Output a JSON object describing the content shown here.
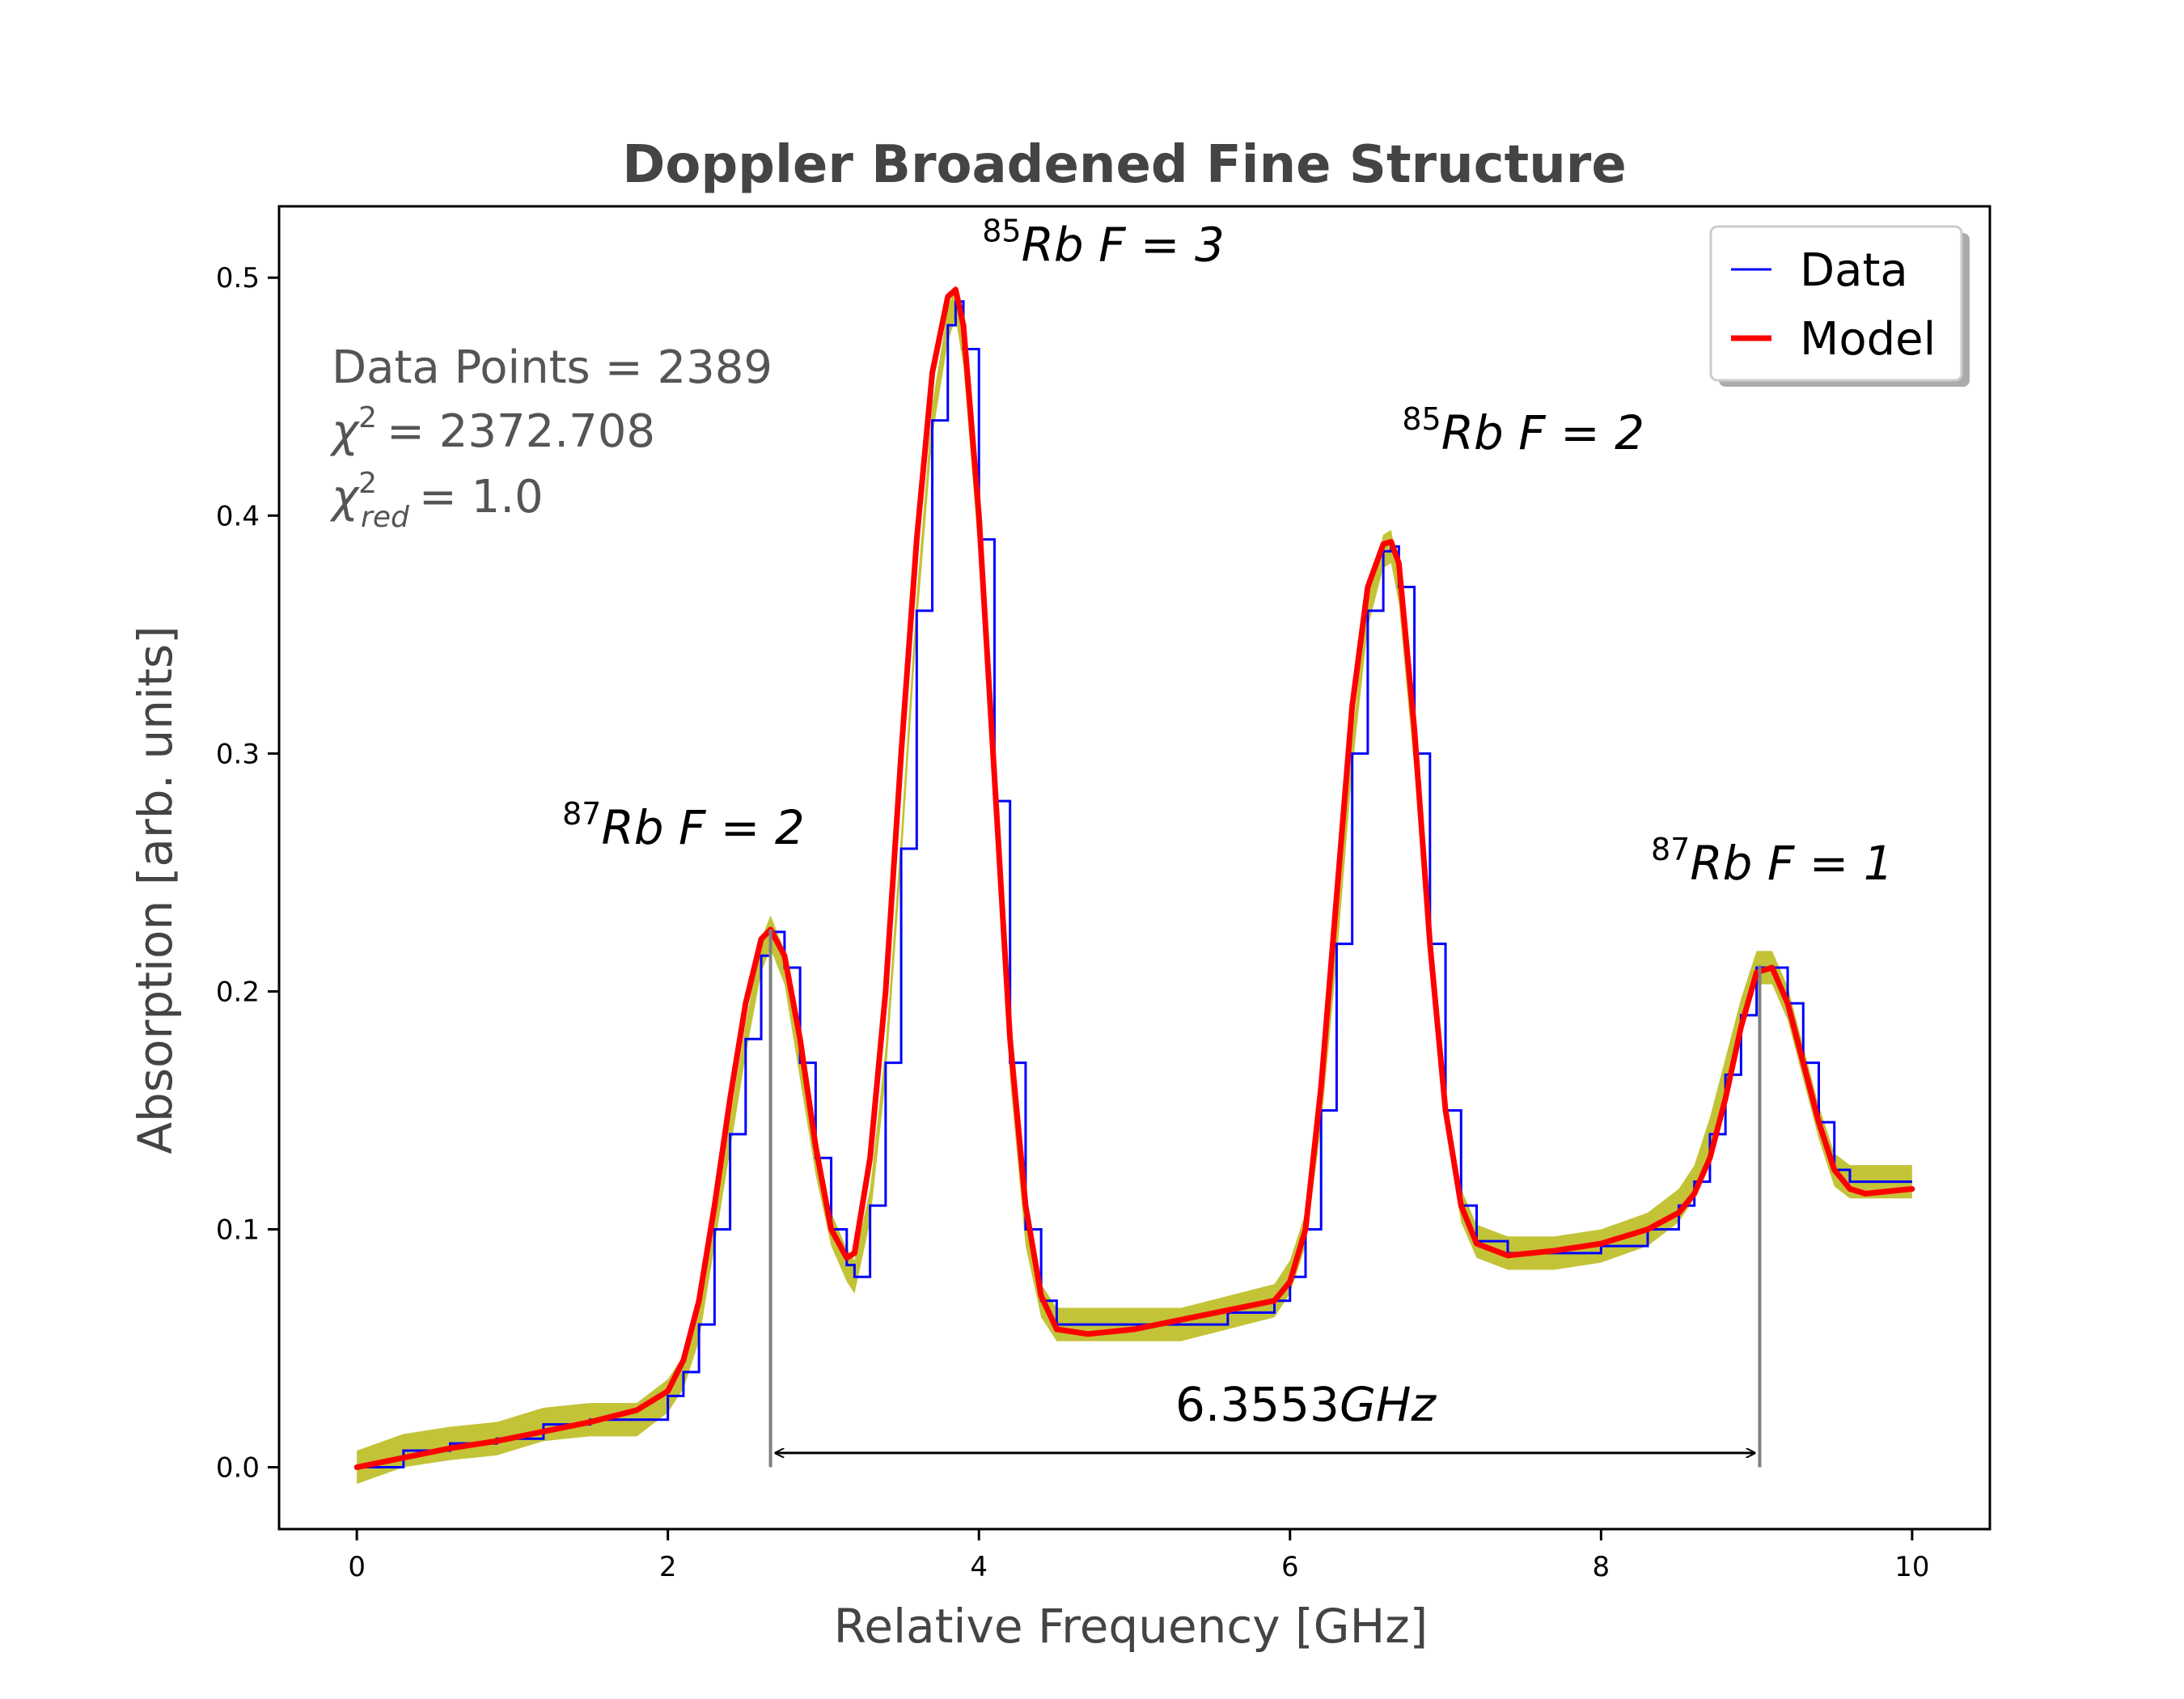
{
  "chart_data": {
    "type": "line",
    "title": "Doppler Broadened Fine Structure",
    "xlabel": "Relative Frequency [GHz]",
    "ylabel": "Absorption [arb. units]",
    "xlim": [
      -0.5,
      10.5
    ],
    "ylim": [
      -0.026,
      0.53
    ],
    "xticks": [
      0,
      2,
      4,
      6,
      8,
      10
    ],
    "xtick_labels": [
      "0",
      "2",
      "4",
      "6",
      "8",
      "10"
    ],
    "yticks": [
      0.0,
      0.1,
      0.2,
      0.3,
      0.4,
      0.5
    ],
    "ytick_labels": [
      "0.0",
      "0.1",
      "0.2",
      "0.3",
      "0.4",
      "0.5"
    ],
    "grid": false,
    "legend": {
      "placement": "top-right",
      "entries": [
        {
          "label": "Data",
          "color": "#0000ff"
        },
        {
          "label": "Model",
          "color": "#ff0000"
        }
      ]
    },
    "stats": {
      "points_label": "Data Points",
      "points_value": "= 2389",
      "chi2_value": "= 2372.708",
      "chi2red_sub": "red",
      "chi2red_value": "= 1.0"
    },
    "peak_labels": [
      {
        "isotope": "87",
        "element": "Rb",
        "level": "F = 2",
        "x": 2.1,
        "y": 0.262
      },
      {
        "isotope": "85",
        "element": "Rb",
        "level": "F = 3",
        "x": 4.8,
        "y": 0.507
      },
      {
        "isotope": "85",
        "element": "Rb",
        "level": "F = 2",
        "x": 7.5,
        "y": 0.428
      },
      {
        "isotope": "87",
        "element": "Rb",
        "level": "F = 1",
        "x": 9.1,
        "y": 0.247
      }
    ],
    "separation": {
      "value": "6.3553",
      "unit": "GHz",
      "x_start": 2.66,
      "x_end": 9.02,
      "y": 0.006
    },
    "series": [
      {
        "name": "Data",
        "color": "#0000ff",
        "error_color": "#bcbd22",
        "error": 0.007,
        "x": [
          0,
          0.3,
          0.6,
          0.9,
          1.2,
          1.5,
          1.8,
          2.0,
          2.1,
          2.2,
          2.3,
          2.4,
          2.5,
          2.6,
          2.66,
          2.75,
          2.85,
          2.95,
          3.05,
          3.15,
          3.2,
          3.3,
          3.4,
          3.5,
          3.6,
          3.7,
          3.8,
          3.85,
          3.9,
          4.0,
          4.1,
          4.2,
          4.3,
          4.4,
          4.5,
          4.7,
          5.0,
          5.3,
          5.6,
          5.9,
          6.0,
          6.1,
          6.2,
          6.3,
          6.4,
          6.5,
          6.6,
          6.65,
          6.7,
          6.8,
          6.9,
          7.0,
          7.1,
          7.2,
          7.4,
          7.7,
          8.0,
          8.3,
          8.5,
          8.6,
          8.7,
          8.8,
          8.9,
          9.0,
          9.1,
          9.2,
          9.3,
          9.4,
          9.5,
          9.6,
          10.0
        ],
        "y": [
          0.0,
          0.007,
          0.01,
          0.012,
          0.018,
          0.02,
          0.02,
          0.03,
          0.04,
          0.06,
          0.1,
          0.14,
          0.18,
          0.215,
          0.225,
          0.21,
          0.17,
          0.13,
          0.1,
          0.085,
          0.08,
          0.11,
          0.17,
          0.26,
          0.36,
          0.44,
          0.48,
          0.49,
          0.47,
          0.39,
          0.28,
          0.17,
          0.1,
          0.07,
          0.06,
          0.06,
          0.06,
          0.06,
          0.065,
          0.07,
          0.08,
          0.1,
          0.15,
          0.22,
          0.3,
          0.36,
          0.385,
          0.387,
          0.37,
          0.3,
          0.22,
          0.15,
          0.11,
          0.095,
          0.09,
          0.09,
          0.093,
          0.1,
          0.11,
          0.12,
          0.14,
          0.165,
          0.19,
          0.21,
          0.21,
          0.195,
          0.17,
          0.145,
          0.125,
          0.12,
          0.12
        ]
      },
      {
        "name": "Model",
        "color": "#ff0000",
        "x": [
          0,
          0.3,
          0.6,
          0.9,
          1.2,
          1.5,
          1.8,
          2.0,
          2.1,
          2.2,
          2.3,
          2.4,
          2.5,
          2.6,
          2.66,
          2.75,
          2.85,
          2.95,
          3.05,
          3.15,
          3.2,
          3.3,
          3.4,
          3.5,
          3.6,
          3.7,
          3.8,
          3.85,
          3.9,
          4.0,
          4.1,
          4.2,
          4.3,
          4.4,
          4.5,
          4.7,
          5.0,
          5.3,
          5.6,
          5.9,
          6.0,
          6.1,
          6.2,
          6.3,
          6.4,
          6.5,
          6.6,
          6.65,
          6.7,
          6.8,
          6.9,
          7.0,
          7.1,
          7.2,
          7.4,
          7.7,
          8.0,
          8.3,
          8.5,
          8.6,
          8.7,
          8.8,
          8.9,
          9.0,
          9.1,
          9.2,
          9.3,
          9.4,
          9.5,
          9.6,
          9.7,
          10.0
        ],
        "y": [
          0.0,
          0.004,
          0.008,
          0.011,
          0.015,
          0.019,
          0.024,
          0.032,
          0.045,
          0.07,
          0.11,
          0.155,
          0.195,
          0.222,
          0.226,
          0.215,
          0.18,
          0.135,
          0.1,
          0.088,
          0.09,
          0.13,
          0.2,
          0.3,
          0.39,
          0.46,
          0.492,
          0.495,
          0.48,
          0.4,
          0.29,
          0.18,
          0.11,
          0.072,
          0.058,
          0.056,
          0.058,
          0.062,
          0.066,
          0.07,
          0.078,
          0.1,
          0.16,
          0.24,
          0.32,
          0.37,
          0.388,
          0.389,
          0.38,
          0.31,
          0.22,
          0.15,
          0.11,
          0.094,
          0.089,
          0.091,
          0.094,
          0.1,
          0.107,
          0.115,
          0.13,
          0.155,
          0.185,
          0.208,
          0.21,
          0.195,
          0.17,
          0.145,
          0.125,
          0.117,
          0.115,
          0.117
        ]
      }
    ]
  }
}
